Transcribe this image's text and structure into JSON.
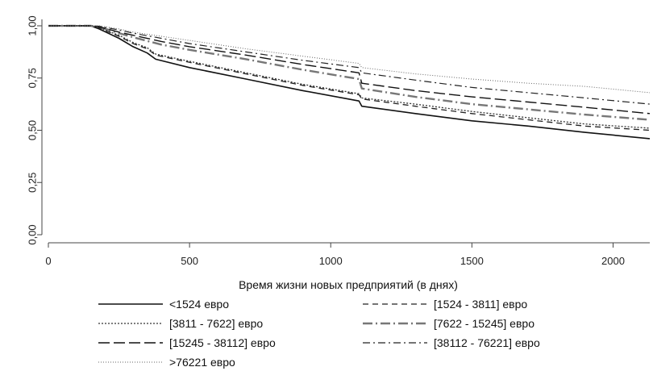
{
  "chart_data": {
    "type": "line",
    "title": "",
    "xlabel": "Время жизни новых предприятий (в днях)",
    "ylabel": "",
    "xlim": [
      0,
      2130
    ],
    "ylim": [
      0,
      1
    ],
    "xticks": [
      0,
      500,
      1000,
      1500,
      2000
    ],
    "xtick_labels": [
      "0",
      "500",
      "1000",
      "1500",
      "2000"
    ],
    "yticks": [
      0,
      0.25,
      0.5,
      0.75,
      1
    ],
    "ytick_labels": [
      "0,00",
      "0,25",
      "0,50",
      "0,75",
      "1,00"
    ],
    "grid": false,
    "legend_position": "bottom",
    "series": [
      {
        "name": "<1524 евро",
        "style": "solid",
        "color": "#111111",
        "x": [
          0,
          150,
          180,
          250,
          300,
          350,
          380,
          500,
          700,
          900,
          1100,
          1110,
          1300,
          1500,
          1700,
          1900,
          2130
        ],
        "y": [
          1.0,
          1.0,
          0.985,
          0.94,
          0.9,
          0.87,
          0.84,
          0.8,
          0.745,
          0.69,
          0.64,
          0.615,
          0.58,
          0.545,
          0.52,
          0.49,
          0.46
        ]
      },
      {
        "name": "[1524 - 3811] евро",
        "style": "dash",
        "color": "#222222",
        "x": [
          0,
          150,
          180,
          250,
          300,
          350,
          380,
          500,
          700,
          900,
          1100,
          1110,
          1300,
          1500,
          1700,
          1900,
          2130
        ],
        "y": [
          1.0,
          1.0,
          0.99,
          0.95,
          0.915,
          0.89,
          0.86,
          0.825,
          0.77,
          0.715,
          0.67,
          0.65,
          0.615,
          0.58,
          0.55,
          0.52,
          0.5
        ]
      },
      {
        "name": "[3811 - 7622] евро",
        "style": "dot",
        "color": "#333333",
        "x": [
          0,
          150,
          180,
          250,
          300,
          350,
          380,
          500,
          700,
          900,
          1100,
          1110,
          1300,
          1500,
          1700,
          1900,
          2130
        ],
        "y": [
          1.0,
          1.0,
          0.99,
          0.955,
          0.92,
          0.895,
          0.865,
          0.83,
          0.775,
          0.72,
          0.675,
          0.655,
          0.625,
          0.59,
          0.56,
          0.53,
          0.51
        ]
      },
      {
        "name": "[7622 - 15245] евро",
        "style": "dashdot",
        "color": "#777777",
        "x": [
          0,
          150,
          180,
          250,
          300,
          400,
          500,
          700,
          900,
          1100,
          1110,
          1300,
          1500,
          1700,
          1900,
          2130
        ],
        "y": [
          1.0,
          1.0,
          0.995,
          0.965,
          0.945,
          0.91,
          0.885,
          0.84,
          0.79,
          0.745,
          0.7,
          0.66,
          0.625,
          0.6,
          0.575,
          0.55
        ]
      },
      {
        "name": "[15245 - 38112] евро",
        "style": "longdash",
        "color": "#111111",
        "x": [
          0,
          150,
          180,
          250,
          300,
          400,
          500,
          700,
          900,
          1100,
          1110,
          1300,
          1500,
          1700,
          1900,
          2130
        ],
        "y": [
          1.0,
          1.0,
          0.995,
          0.97,
          0.955,
          0.925,
          0.9,
          0.86,
          0.815,
          0.775,
          0.725,
          0.69,
          0.66,
          0.635,
          0.61,
          0.58
        ]
      },
      {
        "name": "[38112 - 76221] евро",
        "style": "dashdotthin",
        "color": "#222222",
        "x": [
          0,
          150,
          180,
          250,
          300,
          400,
          500,
          700,
          900,
          1100,
          1110,
          1300,
          1500,
          1700,
          1900,
          2130
        ],
        "y": [
          1.0,
          1.0,
          0.998,
          0.98,
          0.965,
          0.94,
          0.915,
          0.875,
          0.835,
          0.8,
          0.775,
          0.74,
          0.705,
          0.68,
          0.655,
          0.625
        ]
      },
      {
        "name": ">76221 евро",
        "style": "finedot",
        "color": "#666666",
        "x": [
          0,
          150,
          180,
          250,
          300,
          400,
          500,
          700,
          900,
          1100,
          1110,
          1300,
          1500,
          1700,
          1900,
          2130
        ],
        "y": [
          1.0,
          1.0,
          1.0,
          0.985,
          0.97,
          0.95,
          0.93,
          0.89,
          0.855,
          0.82,
          0.8,
          0.77,
          0.745,
          0.725,
          0.71,
          0.68
        ]
      }
    ]
  }
}
